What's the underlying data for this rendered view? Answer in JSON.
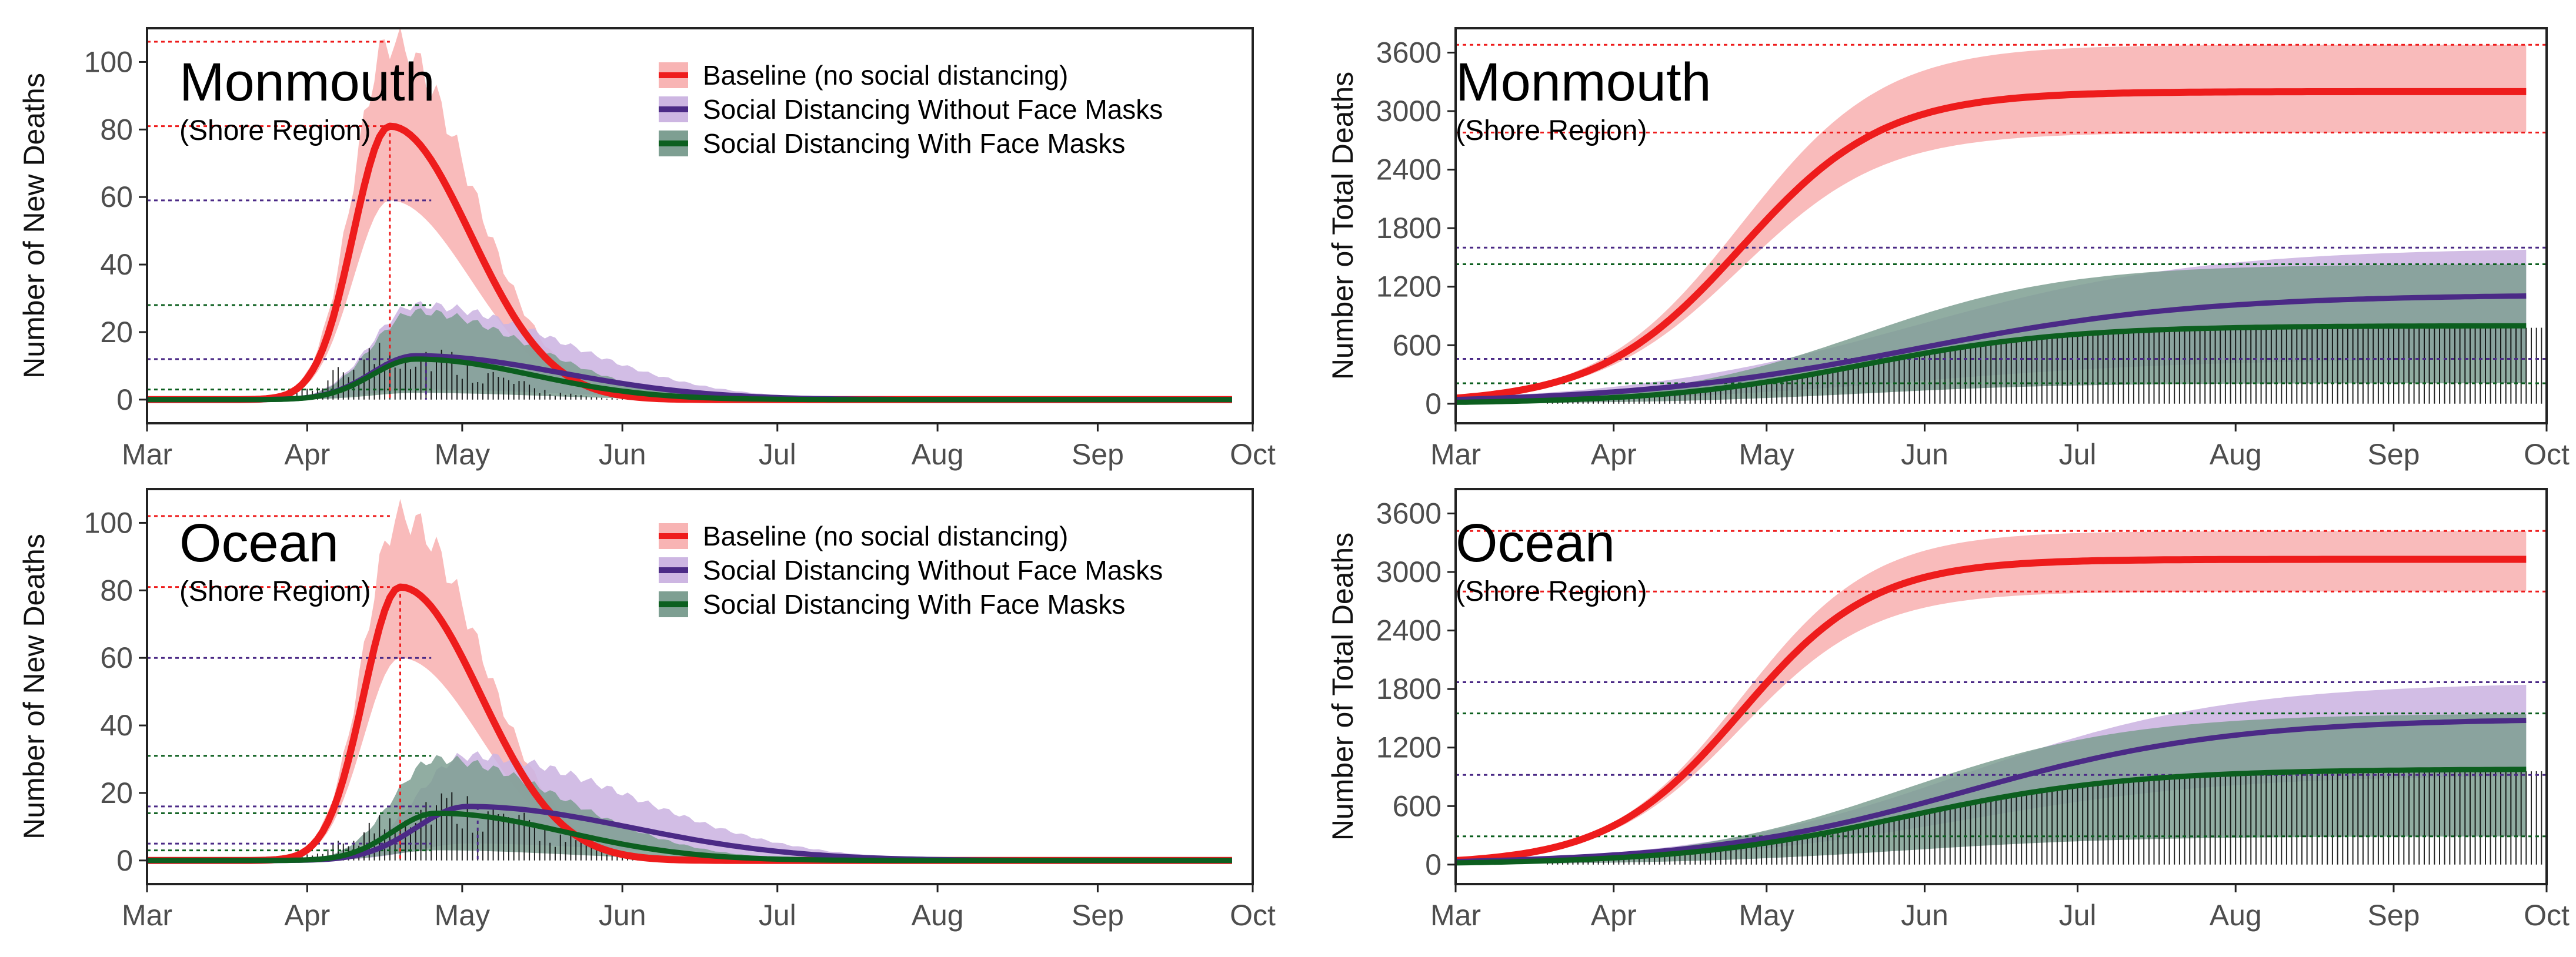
{
  "colors": {
    "baseline": "#ee1c1c",
    "baseline_band": "#f8b4b4",
    "no_mask": "#4b2a86",
    "no_mask_band": "#cdb6e2",
    "mask": "#0c5f1f",
    "mask_band": "#7e9f92",
    "observed": "#000000"
  },
  "legend": {
    "baseline": "Baseline (no social distancing)",
    "no_mask": "Social Distancing Without Face Masks",
    "mask": "Social Distancing With Face Masks"
  },
  "chart_data": [
    {
      "type": "line",
      "panel": "top-left",
      "title": "Monmouth",
      "subtitle": "(Shore Region)",
      "xlabel": "",
      "ylabel": "Number of New Deaths",
      "months": [
        "Mar",
        "Apr",
        "May",
        "Jun",
        "Jul",
        "Aug",
        "Sep",
        "Oct"
      ],
      "xlim": [
        0,
        214
      ],
      "ylim": [
        -7,
        110
      ],
      "yticks": [
        0,
        20,
        40,
        60,
        80,
        100
      ],
      "legend": true,
      "series": [
        {
          "name": "Baseline (no social distancing)",
          "key": "baseline",
          "center": 47,
          "peak": 81,
          "upper": 106,
          "lower": 59,
          "rise": 10,
          "fall": 22
        },
        {
          "name": "Social Distancing Without Face Masks",
          "key": "no_mask",
          "center": 52,
          "peak": 13,
          "upper": 28,
          "lower": 3,
          "rise": 12,
          "fall": 40
        },
        {
          "name": "Social Distancing With Face Masks",
          "key": "mask",
          "center": 52,
          "peak": 12,
          "upper": 26,
          "lower": 2,
          "rise": 12,
          "fall": 32
        }
      ],
      "observed": {
        "start": 18,
        "end": 150,
        "center": 48,
        "peak": 14,
        "width": 22
      },
      "reference_lines": [
        106,
        81,
        59,
        28,
        12,
        3
      ]
    },
    {
      "type": "line",
      "panel": "top-right",
      "title": "Monmouth",
      "subtitle": "(Shore Region)",
      "xlabel": "",
      "ylabel": "Number of Total Deaths",
      "months": [
        "Mar",
        "Apr",
        "May",
        "Jun",
        "Jul",
        "Aug",
        "Sep",
        "Oct"
      ],
      "xlim": [
        0,
        214
      ],
      "ylim": [
        -200,
        3850
      ],
      "yticks": [
        0,
        600,
        1200,
        1800,
        2400,
        3000,
        3600
      ],
      "legend": false,
      "series": [
        {
          "name": "Baseline (no social distancing)",
          "key": "baseline",
          "center": 56,
          "scale": 14,
          "final": 3200,
          "upper": 3680,
          "lower": 2780
        },
        {
          "name": "Social Distancing Without Face Masks",
          "key": "no_mask",
          "center": 90,
          "scale": 28,
          "final": 1120,
          "upper": 1600,
          "lower": 460
        },
        {
          "name": "Social Distancing With Face Masks",
          "key": "mask",
          "center": 80,
          "scale": 20,
          "final": 800,
          "upper": 1430,
          "lower": 210
        }
      ],
      "observed": {
        "start": 18,
        "end": 214,
        "final": 780,
        "center": 78,
        "scale": 20
      },
      "reference_lines": [
        3680,
        2780,
        1600,
        1430,
        460,
        210
      ]
    },
    {
      "type": "line",
      "panel": "bottom-left",
      "title": "Ocean",
      "subtitle": "(Shore Region)",
      "xlabel": "",
      "ylabel": "Number of New Deaths",
      "months": [
        "Mar",
        "Apr",
        "May",
        "Jun",
        "Jul",
        "Aug",
        "Sep",
        "Oct"
      ],
      "xlim": [
        0,
        214
      ],
      "ylim": [
        -7,
        110
      ],
      "yticks": [
        0,
        20,
        40,
        60,
        80,
        100
      ],
      "legend": true,
      "series": [
        {
          "name": "Baseline (no social distancing)",
          "key": "baseline",
          "center": 49,
          "peak": 81,
          "upper": 102,
          "lower": 60,
          "rise": 10,
          "fall": 22
        },
        {
          "name": "Social Distancing Without Face Masks",
          "key": "no_mask",
          "center": 62,
          "peak": 16,
          "upper": 31,
          "lower": 5,
          "rise": 14,
          "fall": 45
        },
        {
          "name": "Social Distancing With Face Masks",
          "key": "mask",
          "center": 56,
          "peak": 14,
          "upper": 30,
          "lower": 3,
          "rise": 12,
          "fall": 35
        }
      ],
      "observed": {
        "start": 18,
        "end": 214,
        "center": 55,
        "peak": 16,
        "width": 26
      },
      "reference_lines": [
        102,
        81,
        60,
        31,
        16,
        14,
        5,
        3
      ]
    },
    {
      "type": "line",
      "panel": "bottom-right",
      "title": "Ocean",
      "subtitle": "(Shore Region)",
      "xlabel": "",
      "ylabel": "Number of Total Deaths",
      "months": [
        "Mar",
        "Apr",
        "May",
        "Jun",
        "Jul",
        "Aug",
        "Sep",
        "Oct"
      ],
      "xlim": [
        0,
        214
      ],
      "ylim": [
        -200,
        3850
      ],
      "yticks": [
        0,
        600,
        1200,
        1800,
        2400,
        3000,
        3600
      ],
      "legend": false,
      "series": [
        {
          "name": "Baseline (no social distancing)",
          "key": "baseline",
          "center": 56,
          "scale": 13,
          "final": 3130,
          "upper": 3420,
          "lower": 2800
        },
        {
          "name": "Social Distancing Without Face Masks",
          "key": "no_mask",
          "center": 100,
          "scale": 26,
          "final": 1500,
          "upper": 1870,
          "lower": 920
        },
        {
          "name": "Social Distancing With Face Masks",
          "key": "mask",
          "center": 88,
          "scale": 22,
          "final": 980,
          "upper": 1550,
          "lower": 290
        }
      ],
      "observed": {
        "start": 18,
        "end": 214,
        "final": 960,
        "center": 86,
        "scale": 22
      },
      "reference_lines": [
        3420,
        2800,
        1870,
        1550,
        920,
        290
      ]
    }
  ]
}
